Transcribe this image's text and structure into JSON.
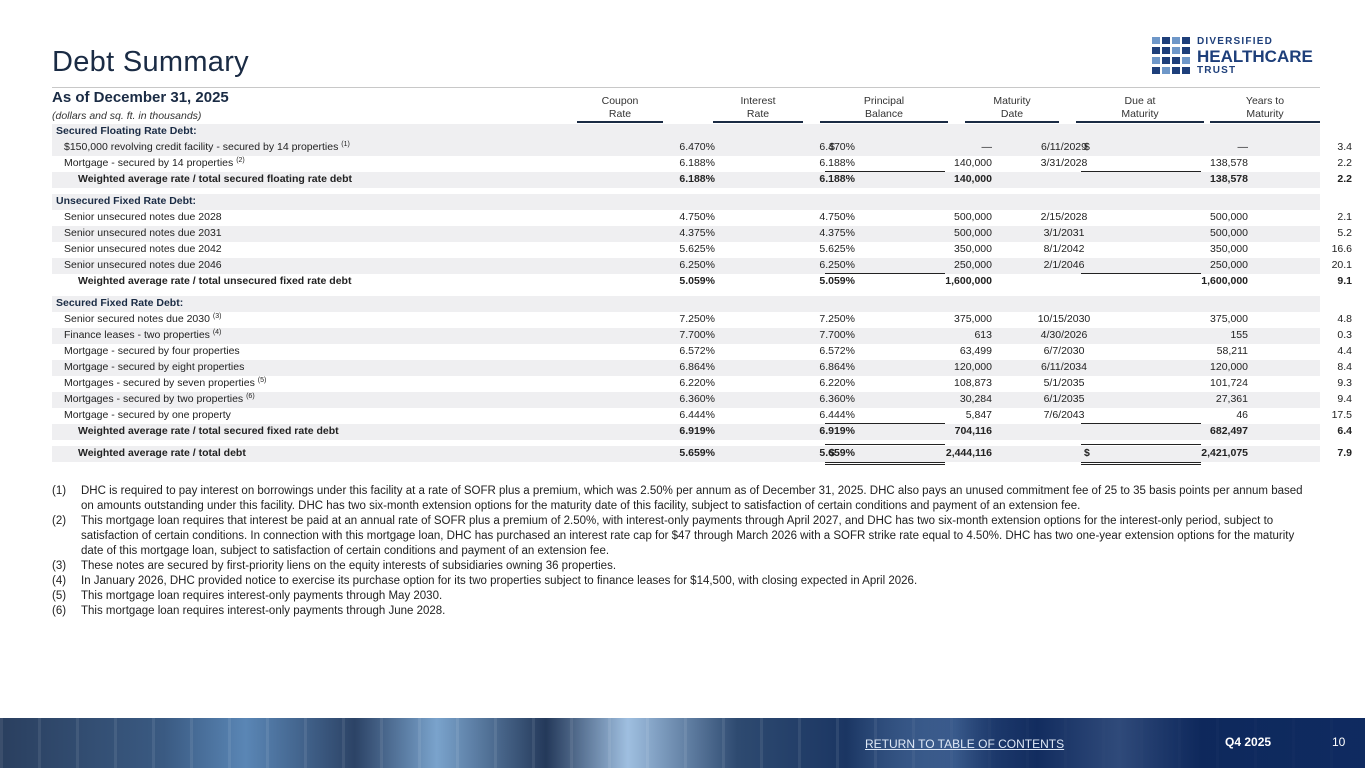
{
  "page": {
    "title": "Debt Summary",
    "as_of": "As of December 31, 2025",
    "units_note": "(dollars and sq. ft. in thousands)"
  },
  "logo": {
    "line1": "DIVERSIFIED",
    "line2": "HEALTHCARE",
    "line3": "TRUST",
    "color": "#1e3f7a"
  },
  "columns": {
    "coupon": [
      "Coupon",
      "Rate"
    ],
    "interest": [
      "Interest",
      "Rate"
    ],
    "principal": [
      "Principal",
      "Balance"
    ],
    "maturity": [
      "Maturity",
      "Date"
    ],
    "due": [
      "Due at",
      "Maturity"
    ],
    "years": [
      "Years to",
      "Maturity"
    ]
  },
  "sections": {
    "s1": "Secured Floating Rate Debt:",
    "s2": "Unsecured Fixed Rate Debt:",
    "s3": "Secured Fixed Rate Debt:"
  },
  "rows": [
    {
      "label": "$150,000 revolving credit facility - secured by 14 properties",
      "sup": "(1)",
      "coupon": "6.470%",
      "interest": "6.470%",
      "principal_dollar": "$",
      "principal": "—",
      "maturity": "6/11/2029",
      "due_dollar": "$",
      "due": "—",
      "years": "3.4"
    },
    {
      "label": "Mortgage - secured by 14 properties",
      "sup": "(2)",
      "coupon": "6.188%",
      "interest": "6.188%",
      "principal": "140,000",
      "maturity": "3/31/2028",
      "due": "138,578",
      "years": "2.2"
    },
    {
      "label": "Weighted average rate / total secured floating rate debt",
      "coupon": "6.188%",
      "interest": "6.188%",
      "principal": "140,000",
      "due": "138,578",
      "years": "2.2"
    },
    {
      "label": "Senior unsecured notes due 2028",
      "coupon": "4.750%",
      "interest": "4.750%",
      "principal": "500,000",
      "maturity": "2/15/2028",
      "due": "500,000",
      "years": "2.1"
    },
    {
      "label": "Senior unsecured notes due 2031",
      "coupon": "4.375%",
      "interest": "4.375%",
      "principal": "500,000",
      "maturity": "3/1/2031",
      "due": "500,000",
      "years": "5.2"
    },
    {
      "label": "Senior unsecured notes due 2042",
      "coupon": "5.625%",
      "interest": "5.625%",
      "principal": "350,000",
      "maturity": "8/1/2042",
      "due": "350,000",
      "years": "16.6"
    },
    {
      "label": "Senior unsecured notes due 2046",
      "coupon": "6.250%",
      "interest": "6.250%",
      "principal": "250,000",
      "maturity": "2/1/2046",
      "due": "250,000",
      "years": "20.1"
    },
    {
      "label": "Weighted average rate / total unsecured fixed rate debt",
      "coupon": "5.059%",
      "interest": "5.059%",
      "principal": "1,600,000",
      "due": "1,600,000",
      "years": "9.1"
    },
    {
      "label": "Senior secured notes due 2030",
      "sup": "(3)",
      "coupon": "7.250%",
      "interest": "7.250%",
      "principal": "375,000",
      "maturity": "10/15/2030",
      "due": "375,000",
      "years": "4.8"
    },
    {
      "label": "Finance leases - two properties",
      "sup": "(4)",
      "coupon": "7.700%",
      "interest": "7.700%",
      "principal": "613",
      "maturity": "4/30/2026",
      "due": "155",
      "years": "0.3"
    },
    {
      "label": "Mortgage - secured by four properties",
      "coupon": "6.572%",
      "interest": "6.572%",
      "principal": "63,499",
      "maturity": "6/7/2030",
      "due": "58,211",
      "years": "4.4"
    },
    {
      "label": "Mortgage - secured by eight properties",
      "coupon": "6.864%",
      "interest": "6.864%",
      "principal": "120,000",
      "maturity": "6/11/2034",
      "due": "120,000",
      "years": "8.4"
    },
    {
      "label": "Mortgages - secured by seven properties",
      "sup": "(5)",
      "coupon": "6.220%",
      "interest": "6.220%",
      "principal": "108,873",
      "maturity": "5/1/2035",
      "due": "101,724",
      "years": "9.3"
    },
    {
      "label": "Mortgages - secured by two properties",
      "sup": "(6)",
      "coupon": "6.360%",
      "interest": "6.360%",
      "principal": "30,284",
      "maturity": "6/1/2035",
      "due": "27,361",
      "years": "9.4"
    },
    {
      "label": "Mortgage - secured by one property",
      "coupon": "6.444%",
      "interest": "6.444%",
      "principal": "5,847",
      "maturity": "7/6/2043",
      "due": "46",
      "years": "17.5"
    },
    {
      "label": "Weighted average rate / total secured fixed rate debt",
      "coupon": "6.919%",
      "interest": "6.919%",
      "principal": "704,116",
      "due": "682,497",
      "years": "6.4"
    },
    {
      "label": "Weighted average rate / total debt",
      "coupon": "5.659%",
      "interest": "5.659%",
      "principal_dollar": "$",
      "principal": "2,444,116",
      "due_dollar": "$",
      "due": "2,421,075",
      "years": "7.9"
    }
  ],
  "footnotes": [
    {
      "n": "(1)",
      "text": "DHC is required to pay interest on borrowings under this facility at a rate of SOFR plus a premium, which was 2.50% per annum as of December 31, 2025. DHC also pays an unused commitment fee of 25 to 35 basis points per annum based on amounts outstanding under this facility. DHC has two six-month extension options for the maturity date of this facility, subject to satisfaction of certain conditions and payment of an extension fee."
    },
    {
      "n": "(2)",
      "text": "This mortgage loan requires that interest be paid at an annual rate of SOFR plus a premium of 2.50%, with interest-only payments through April 2027, and DHC has two six-month extension options for the interest-only period, subject to satisfaction of certain conditions. In connection with this mortgage loan, DHC has purchased an interest rate cap for $47 through March 2026 with a SOFR strike rate equal to 4.50%. DHC has two one-year extension options for the maturity date of this mortgage loan, subject to satisfaction of certain conditions and payment of an extension fee."
    },
    {
      "n": "(3)",
      "text": "These notes are secured by first-priority liens on the equity interests of subsidiaries owning 36 properties."
    },
    {
      "n": "(4)",
      "text": "In January 2026, DHC provided notice to exercise its purchase option for its two properties subject to finance leases for $14,500, with closing expected in April 2026."
    },
    {
      "n": "(5)",
      "text": "This mortgage loan requires interest-only payments through May 2030."
    },
    {
      "n": "(6)",
      "text": "This mortgage loan requires interest-only payments through June 2028."
    }
  ],
  "footer": {
    "toc_link": "RETURN TO TABLE OF CONTENTS",
    "quarter": "Q4 2025",
    "page_number": "10"
  }
}
